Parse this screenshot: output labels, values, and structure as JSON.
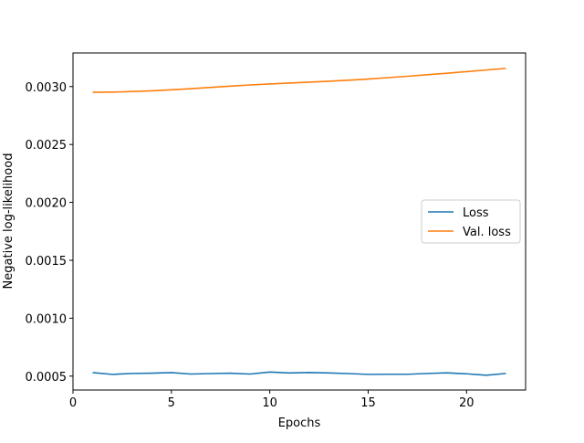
{
  "chart_data": {
    "type": "line",
    "title": "",
    "xlabel": "Epochs",
    "ylabel": "Negative log-likelihood",
    "xlim": [
      0,
      23
    ],
    "ylim": [
      0.00038,
      0.00329
    ],
    "xticks": [
      0,
      5,
      10,
      15,
      20
    ],
    "xtick_labels": [
      "0",
      "5",
      "10",
      "15",
      "20"
    ],
    "yticks": [
      0.0005,
      0.001,
      0.0015,
      0.002,
      0.0025,
      0.003
    ],
    "ytick_labels": [
      "0.0005",
      "0.0010",
      "0.0015",
      "0.0020",
      "0.0025",
      "0.0030"
    ],
    "grid": false,
    "legend_position": "center-right",
    "x": [
      1,
      2,
      3,
      4,
      5,
      6,
      7,
      8,
      9,
      10,
      11,
      12,
      13,
      14,
      15,
      16,
      17,
      18,
      19,
      20,
      21,
      22
    ],
    "series": [
      {
        "name": "Loss",
        "color": "#1f77b4",
        "values": [
          0.00053,
          0.000515,
          0.000523,
          0.000525,
          0.00053,
          0.000518,
          0.000522,
          0.000525,
          0.000518,
          0.000535,
          0.000527,
          0.000531,
          0.000527,
          0.000522,
          0.000515,
          0.000516,
          0.000516,
          0.000523,
          0.000528,
          0.00052,
          0.000508,
          0.000523
        ]
      },
      {
        "name": "Val. loss",
        "color": "#ff7f0e",
        "values": [
          0.00295,
          0.002952,
          0.002957,
          0.002963,
          0.002972,
          0.002982,
          0.002993,
          0.003004,
          0.003014,
          0.003022,
          0.00303,
          0.003038,
          0.003046,
          0.003055,
          0.003065,
          0.003077,
          0.003089,
          0.003102,
          0.003115,
          0.003129,
          0.003143,
          0.003157
        ]
      }
    ]
  }
}
